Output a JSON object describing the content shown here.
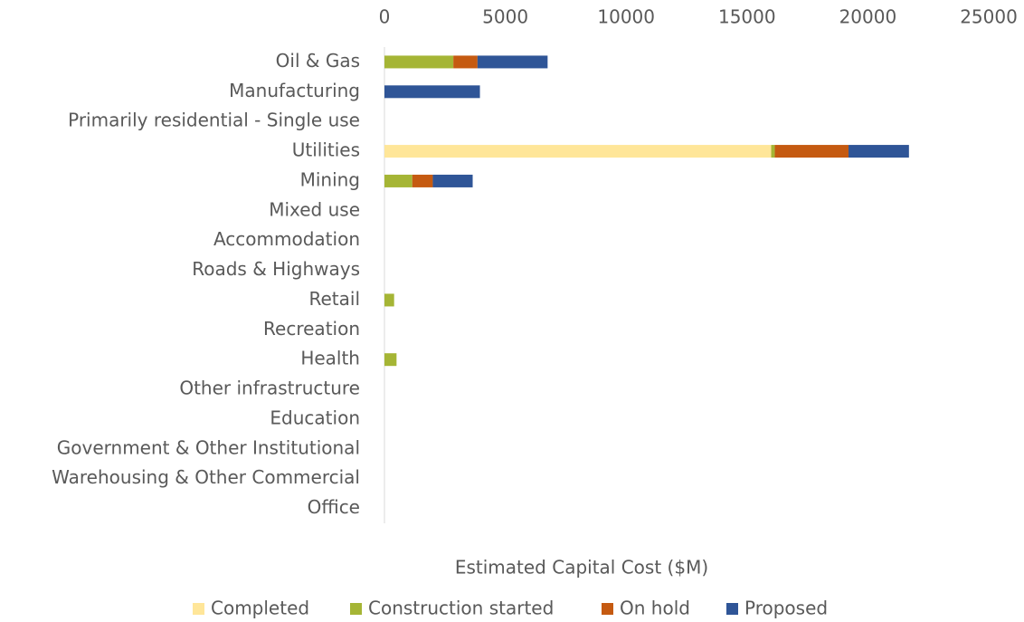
{
  "chart_data": {
    "type": "bar",
    "orientation": "horizontal",
    "stacked": true,
    "x_label": "Estimated Capital Cost ($M)",
    "categories": [
      "Oil & Gas",
      "Manufacturing",
      "Primarily residential - Single use",
      "Utilities",
      "Mining",
      "Mixed use",
      "Accommodation",
      "Roads & Highways",
      "Retail",
      "Recreation",
      "Health",
      "Other infrastructure",
      "Education",
      "Government & Other Institutional",
      "Warehousing & Other Commercial",
      "Office"
    ],
    "series": [
      {
        "name": "Completed",
        "color": "#ffe699",
        "values": [
          0,
          0,
          0,
          16000,
          0,
          0,
          0,
          0,
          0,
          0,
          0,
          0,
          0,
          0,
          0,
          0
        ]
      },
      {
        "name": "Construction started",
        "color": "#a5b535",
        "values": [
          2850,
          0,
          0,
          150,
          1150,
          0,
          0,
          0,
          400,
          0,
          500,
          0,
          0,
          0,
          0,
          0
        ]
      },
      {
        "name": "On hold",
        "color": "#c55a11",
        "values": [
          1000,
          0,
          0,
          3050,
          850,
          0,
          0,
          0,
          0,
          0,
          0,
          0,
          0,
          0,
          0,
          0
        ]
      },
      {
        "name": "Proposed",
        "color": "#2f5597",
        "values": [
          2900,
          3950,
          0,
          2500,
          1650,
          0,
          0,
          0,
          0,
          0,
          0,
          0,
          0,
          0,
          0,
          0
        ]
      }
    ],
    "xlim": [
      0,
      25000
    ],
    "xticks": [
      0,
      5000,
      10000,
      15000,
      20000,
      25000
    ],
    "legend": "bottom"
  }
}
